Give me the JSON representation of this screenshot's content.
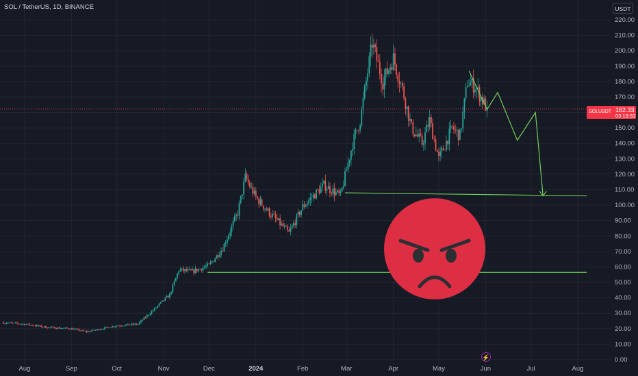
{
  "header": {
    "symbol_title": "SOL / TetherUS, 1D, BINANCE",
    "currency": "USDT"
  },
  "price_tag": {
    "symbol": "SOLUSDT",
    "price": "162.33",
    "countdown": "03:19:53"
  },
  "colors": {
    "background": "#161a25",
    "up": "#26a69a",
    "down": "#ef5350",
    "annotation": "#73d05a",
    "emoji_face": "#dd2e44",
    "price_line": "#f23645"
  },
  "icons": {
    "event": "lightning-icon",
    "emoji": "angry-face-emoji"
  },
  "chart_data": {
    "type": "candlestick",
    "symbol": "SOL / TetherUS",
    "interval": "1D",
    "exchange": "BINANCE",
    "y_axis": {
      "position": "right",
      "unit": "USDT",
      "ylim": [
        0,
        220
      ],
      "ticks": [
        "220.00",
        "210.00",
        "200.00",
        "190.00",
        "180.00",
        "170.00",
        "160.00",
        "150.00",
        "140.00",
        "130.00",
        "120.00",
        "110.00",
        "100.00",
        "90.00",
        "80.00",
        "70.00",
        "60.00",
        "50.00",
        "40.00",
        "30.00",
        "20.00",
        "10.00",
        "0.00"
      ]
    },
    "x_axis": {
      "ticks": [
        "Aug",
        "Sep",
        "Oct",
        "Nov",
        "Dec",
        "2024",
        "Feb",
        "Mar",
        "Apr",
        "May",
        "Jun",
        "Jul",
        "Aug"
      ]
    },
    "grid": true,
    "last_price": 162.33,
    "price_path": [
      {
        "date": "2023-07-17",
        "close": 24
      },
      {
        "date": "2023-08-01",
        "close": 23
      },
      {
        "date": "2023-08-15",
        "close": 21
      },
      {
        "date": "2023-09-01",
        "close": 20
      },
      {
        "date": "2023-09-11",
        "close": 18
      },
      {
        "date": "2023-10-01",
        "close": 22
      },
      {
        "date": "2023-10-15",
        "close": 23
      },
      {
        "date": "2023-10-25",
        "close": 32
      },
      {
        "date": "2023-11-05",
        "close": 42
      },
      {
        "date": "2023-11-11",
        "close": 58
      },
      {
        "date": "2023-11-20",
        "close": 57
      },
      {
        "date": "2023-12-01",
        "close": 61
      },
      {
        "date": "2023-12-10",
        "close": 72
      },
      {
        "date": "2023-12-20",
        "close": 95
      },
      {
        "date": "2023-12-25",
        "close": 118
      },
      {
        "date": "2024-01-01",
        "close": 105
      },
      {
        "date": "2024-01-10",
        "close": 95
      },
      {
        "date": "2024-01-23",
        "close": 82
      },
      {
        "date": "2024-02-01",
        "close": 99
      },
      {
        "date": "2024-02-15",
        "close": 113
      },
      {
        "date": "2024-02-26",
        "close": 106
      },
      {
        "date": "2024-03-05",
        "close": 140
      },
      {
        "date": "2024-03-10",
        "close": 155
      },
      {
        "date": "2024-03-18",
        "close": 205
      },
      {
        "date": "2024-03-25",
        "close": 180
      },
      {
        "date": "2024-04-01",
        "close": 195
      },
      {
        "date": "2024-04-07",
        "close": 175
      },
      {
        "date": "2024-04-13",
        "close": 150
      },
      {
        "date": "2024-04-20",
        "close": 140
      },
      {
        "date": "2024-04-25",
        "close": 155
      },
      {
        "date": "2024-05-01",
        "close": 130
      },
      {
        "date": "2024-05-10",
        "close": 150
      },
      {
        "date": "2024-05-15",
        "close": 145
      },
      {
        "date": "2024-05-20",
        "close": 180
      },
      {
        "date": "2024-05-25",
        "close": 177
      },
      {
        "date": "2024-05-31",
        "close": 166
      },
      {
        "date": "2024-06-02",
        "close": 162.33
      }
    ],
    "annotations": {
      "support_lines": [
        {
          "from": {
            "date": "2024-02-29",
            "price": 108
          },
          "to": {
            "date": "2024-08-07",
            "price": 106
          }
        },
        {
          "from": {
            "date": "2023-11-30",
            "price": 56.5
          },
          "to": {
            "date": "2024-08-07",
            "price": 56.5
          }
        }
      ],
      "trend_line": [
        {
          "date": "2024-05-21",
          "price": 187
        },
        {
          "date": "2024-06-02",
          "price": 162
        }
      ],
      "projected_path": [
        {
          "date": "2024-06-02",
          "price": 162
        },
        {
          "date": "2024-06-09",
          "price": 173
        },
        {
          "date": "2024-06-22",
          "price": 142
        },
        {
          "date": "2024-07-04",
          "price": 160
        },
        {
          "date": "2024-07-09",
          "price": 106
        }
      ]
    }
  }
}
